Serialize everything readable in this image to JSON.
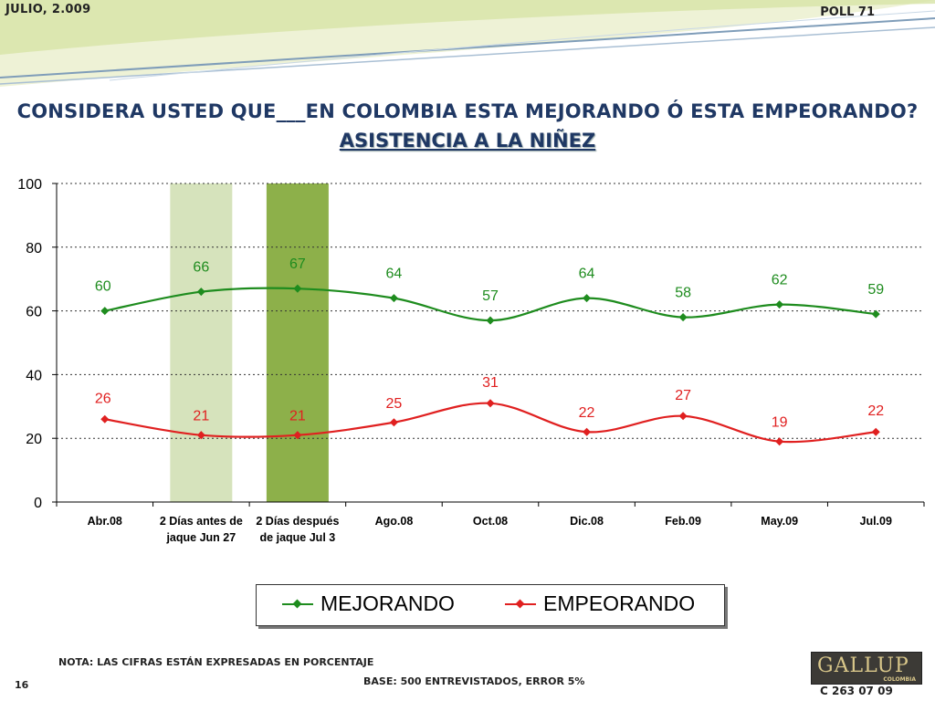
{
  "header": {
    "date": "JULIO, 2.009",
    "poll": "POLL 71"
  },
  "title": {
    "question": "CONSIDERA USTED QUE___EN COLOMBIA ESTA MEJORANDO Ó ESTA EMPEORANDO?",
    "subject": "ASISTENCIA A LA NIÑEZ"
  },
  "chart_data": {
    "type": "line",
    "categories": [
      [
        "Abr.08"
      ],
      [
        "2 Días antes de",
        "jaque Jun 27"
      ],
      [
        "2 Días después",
        "de jaque Jul 3"
      ],
      [
        "Ago.08"
      ],
      [
        "Oct.08"
      ],
      [
        "Dic.08"
      ],
      [
        "Feb.09"
      ],
      [
        "May.09"
      ],
      [
        "Jul.09"
      ]
    ],
    "series": [
      {
        "name": "MEJORANDO",
        "color": "#1e8c1e",
        "values": [
          60,
          66,
          67,
          64,
          57,
          64,
          58,
          62,
          59
        ]
      },
      {
        "name": "EMPEORANDO",
        "color": "#e02020",
        "values": [
          26,
          21,
          21,
          25,
          31,
          22,
          27,
          19,
          22
        ]
      }
    ],
    "highlight_bands": [
      {
        "category_index": 1,
        "color": "#d6e3bc"
      },
      {
        "category_index": 2,
        "color": "#8db04a"
      }
    ],
    "ylim": [
      0,
      100
    ],
    "yticks": [
      0,
      20,
      40,
      60,
      80,
      100
    ],
    "grid": "dotted horizontal",
    "legend": "bottom"
  },
  "footer": {
    "note": "NOTA: LAS CIFRAS ESTÁN EXPRESADAS EN PORCENTAJE",
    "base": "BASE: 500 ENTREVISTADOS, ERROR 5%",
    "page": "16",
    "code": "C 263 07 09",
    "logo_name": "GALLUP",
    "logo_sub": "COLOMBIA"
  }
}
